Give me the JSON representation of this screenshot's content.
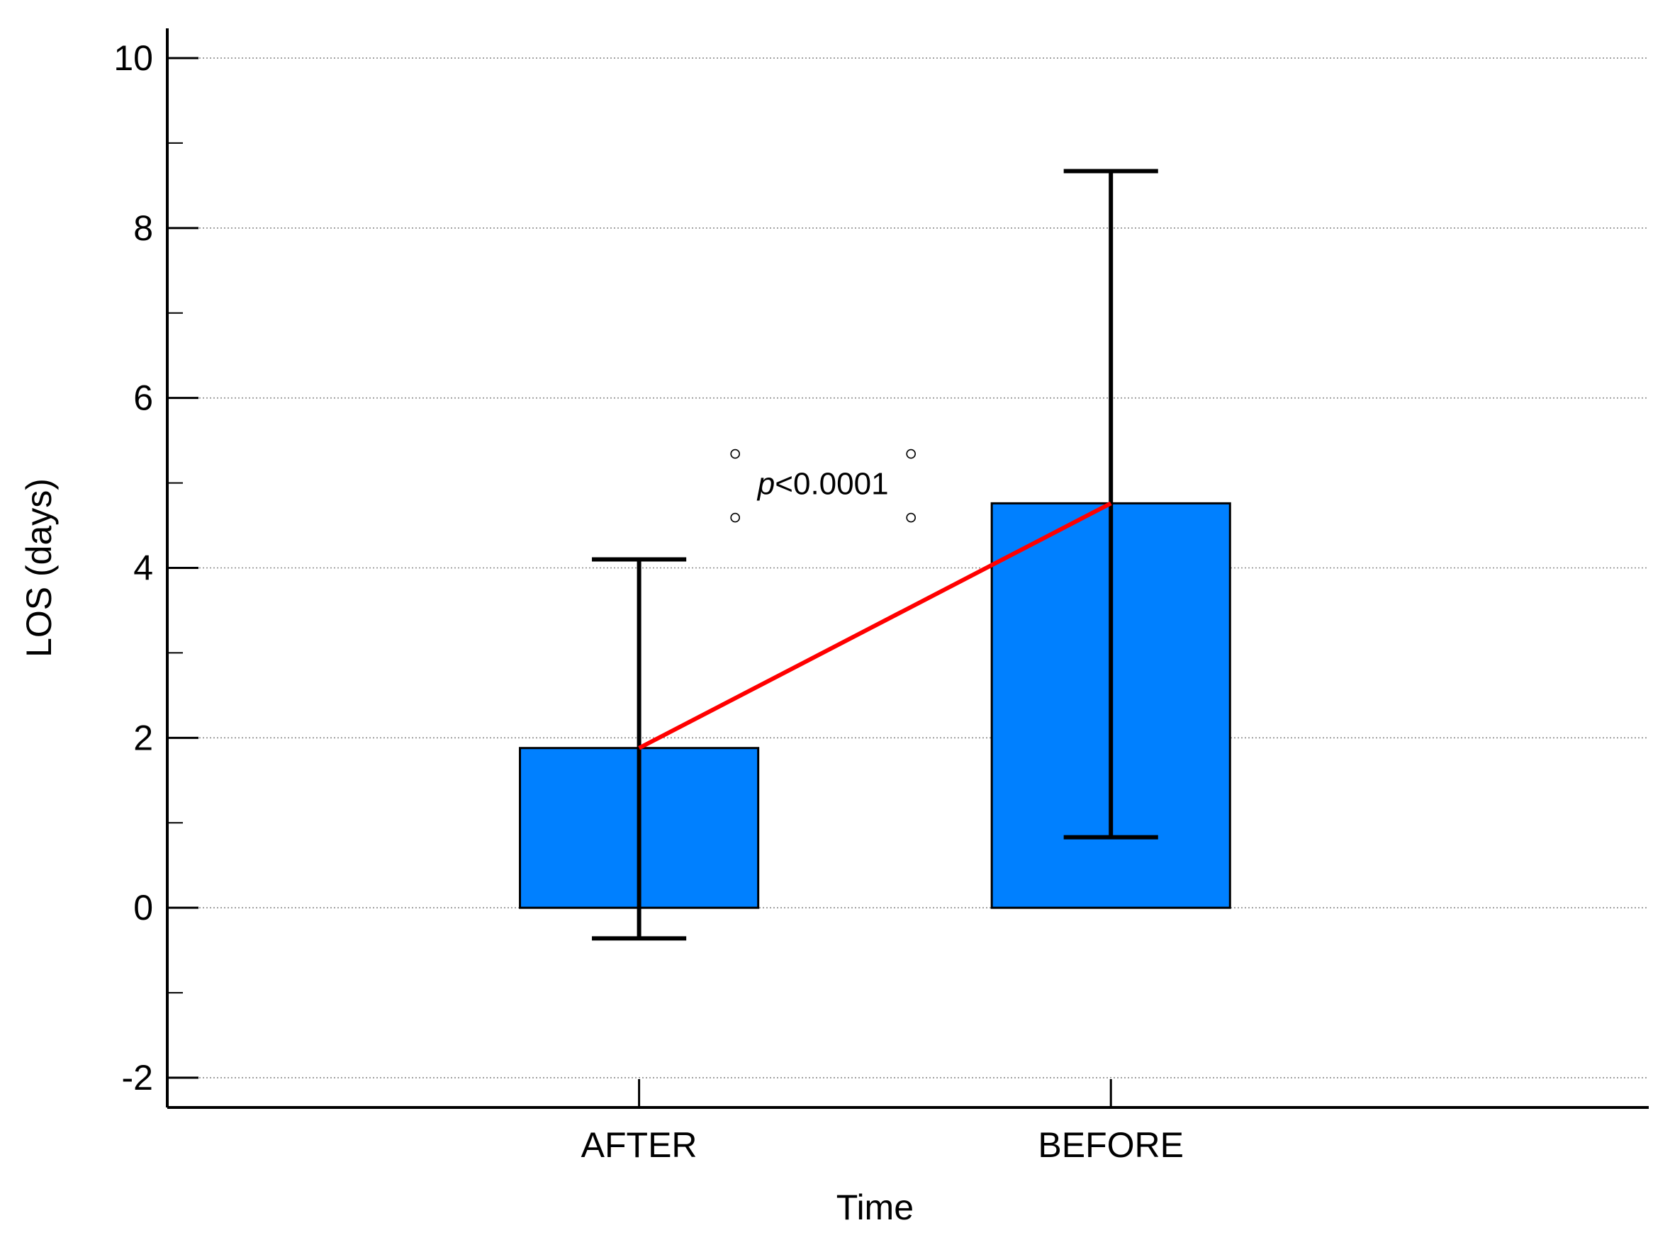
{
  "chart_data": {
    "type": "bar",
    "categories": [
      "AFTER",
      "BEFORE"
    ],
    "values": [
      1.88,
      4.76
    ],
    "error_bars": {
      "lower": [
        -0.36,
        0.83
      ],
      "upper": [
        4.1,
        8.67
      ]
    },
    "connector_line": {
      "from": "AFTER",
      "to": "BEFORE",
      "color": "#ff0000"
    },
    "annotation": {
      "italic_part": "p",
      "text_part": "<0.0001",
      "position": [
        1.39,
        5.0
      ]
    },
    "xlabel": "Time",
    "ylabel": "LOS (days)",
    "ylim": [
      -2.35,
      10.35
    ],
    "yticks": [
      -2,
      0,
      2,
      4,
      6,
      8,
      10
    ],
    "ytick_labels": [
      "-2",
      "0",
      "2",
      "4",
      "6",
      "8",
      "10"
    ],
    "grid": true,
    "bar_color": "#0080ff",
    "edge_color": "#000000"
  }
}
